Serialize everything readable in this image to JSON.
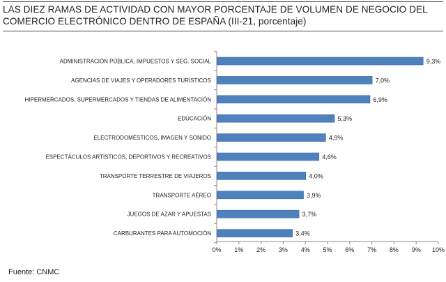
{
  "title": "LAS DIEZ RAMAS DE ACTIVIDAD CON MAYOR PORCENTAJE DE VOLUMEN DE NEGOCIO DEL COMERCIO ELECTRÓNICO DENTRO DE ESPAÑA (III-21, porcentaje)",
  "source": "Fuente: CNMC",
  "colors": {
    "bar": "#4f81bd",
    "bar_edge": "#3a6aa8",
    "text": "#222222",
    "axis": "#888888"
  },
  "chart_data": {
    "type": "bar",
    "orientation": "horizontal",
    "title": "LAS DIEZ RAMAS DE ACTIVIDAD CON MAYOR PORCENTAJE DE VOLUMEN DE NEGOCIO DEL COMERCIO ELECTRÓNICO DENTRO DE ESPAÑA (III-21, porcentaje)",
    "xlabel": "",
    "ylabel": "",
    "xlim": [
      0,
      10
    ],
    "grid": false,
    "categories": [
      "ADMINISTRACIÓN PÚBLICA, IMPUESTOS Y SEG. SOCIAL",
      "AGENCIAS DE VIAJES Y OPERADORES TURÍSTICOS",
      "HIPERMERCADOS, SUPERMERCADOS Y TIENDAS DE ALIMENTACIÓN",
      "EDUCACIÓN",
      "ELECTRODOMÉSTICOS,  IMAGEN Y SONIDO",
      "ESPECTÁCULOS ARTÍSTICOS, DEPORTIVOS Y RECREATIVOS",
      "TRANSPORTE TERRESTRE DE VIAJEROS",
      "TRANSPORTE AÉREO",
      "JUEGOS DE AZAR Y APUESTAS",
      "CARBURANTES PARA AUTOMOCIÓN"
    ],
    "values": [
      9.3,
      7.0,
      6.9,
      5.3,
      4.9,
      4.6,
      4.0,
      3.9,
      3.7,
      3.4
    ],
    "value_labels": [
      "9,3%",
      "7,0%",
      "6,9%",
      "5,3%",
      "4,9%",
      "4,6%",
      "4,0%",
      "3,9%",
      "3,7%",
      "3,4%"
    ],
    "x_ticks": [
      "0%",
      "1%",
      "2%",
      "3%",
      "4%",
      "5%",
      "6%",
      "7%",
      "8%",
      "9%",
      "10%"
    ]
  }
}
